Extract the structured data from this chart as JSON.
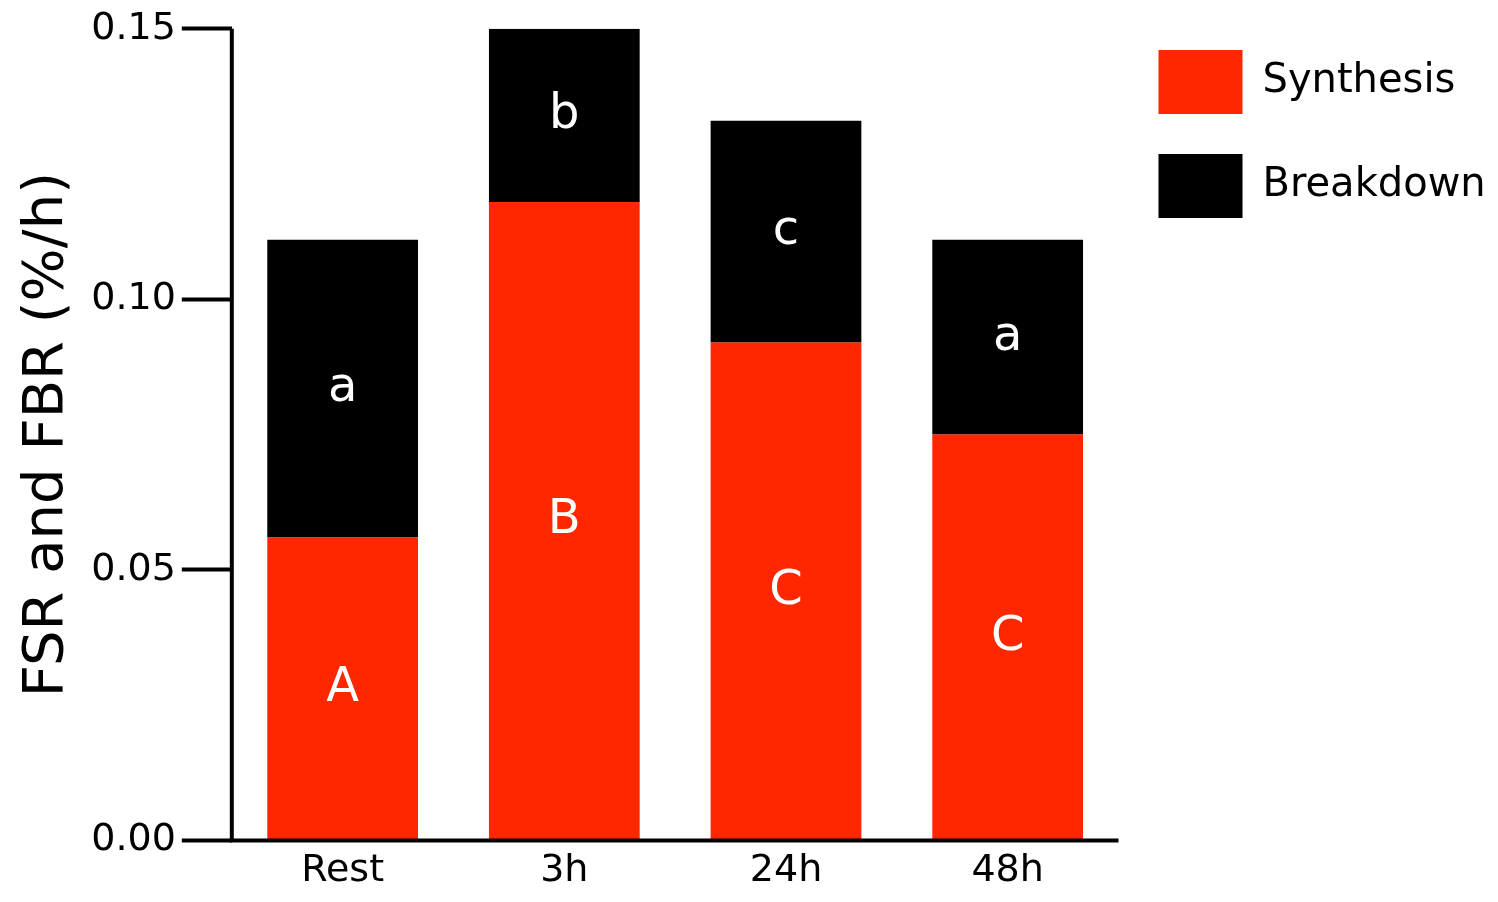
{
  "chart_data": {
    "type": "bar",
    "stacked": true,
    "ylabel": "FSR and FBR (%/h)",
    "categories": [
      "Rest",
      "3h",
      "24h",
      "48h"
    ],
    "series": [
      {
        "name": "Synthesis",
        "color": "#ff2600",
        "values": [
          0.056,
          0.118,
          0.092,
          0.075
        ]
      },
      {
        "name": "Breakdown",
        "color": "#000000",
        "values": [
          0.055,
          0.032,
          0.041,
          0.036
        ]
      }
    ],
    "ylim": [
      0,
      0.15
    ],
    "yticks": [
      {
        "value": 0,
        "label": "0.00"
      },
      {
        "value": 0.05,
        "label": "0.05"
      },
      {
        "value": 0.1,
        "label": "0.10"
      },
      {
        "value": 0.15,
        "label": "0.15"
      }
    ],
    "grid": false,
    "legend": "top right",
    "annotations": [
      "A",
      "a",
      "B",
      "b",
      "C",
      "c",
      "C",
      "a"
    ]
  }
}
